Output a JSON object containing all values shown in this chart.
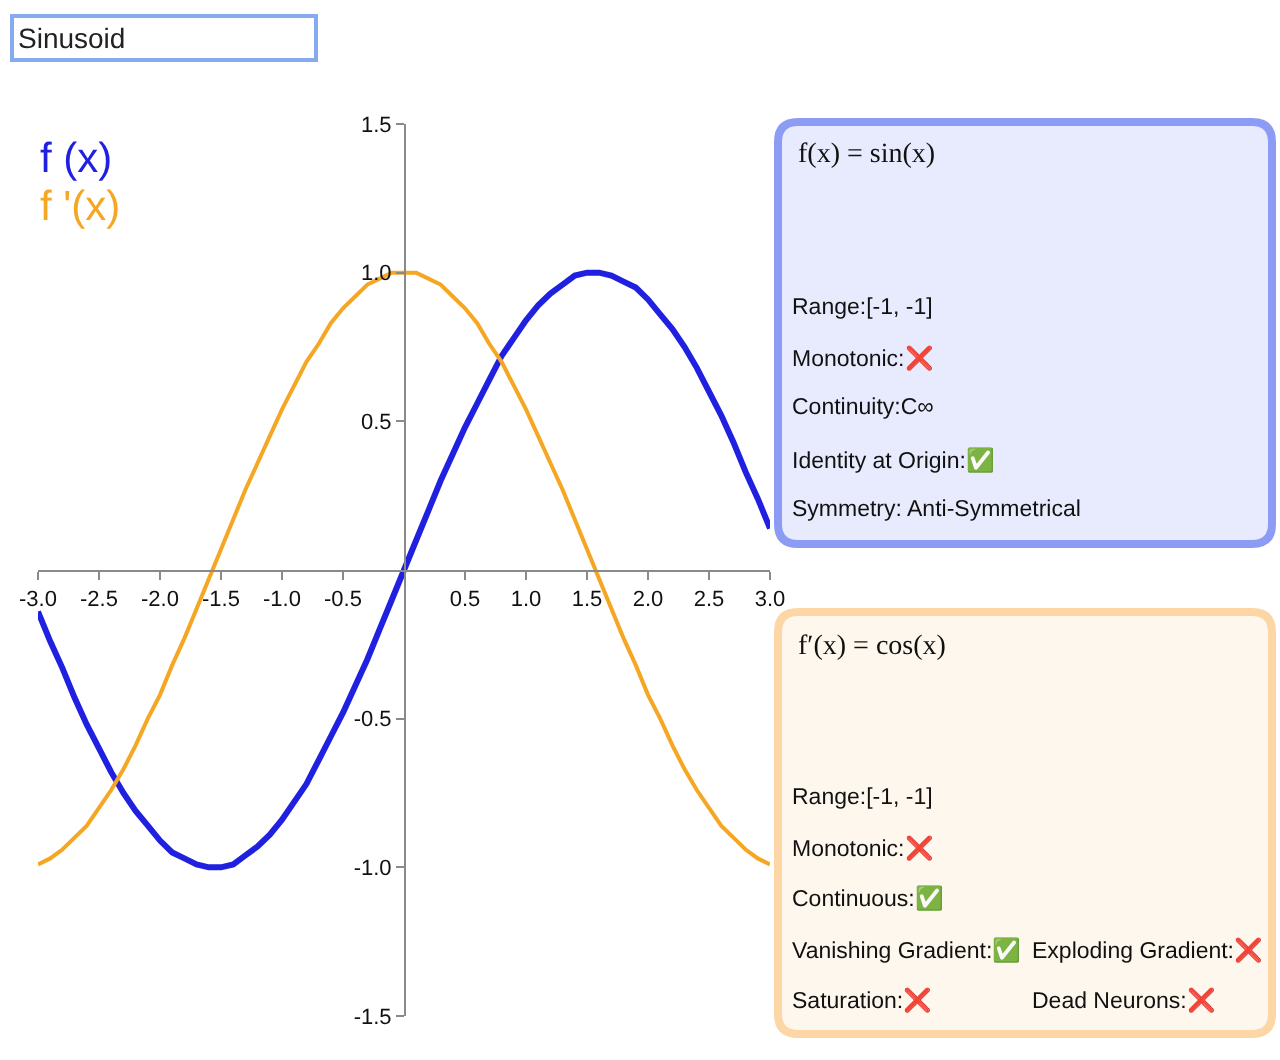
{
  "chart_data": [
    {
      "type": "line",
      "annotations": [
        "Sinusoid"
      ],
      "legend": "top left",
      "x": [
        -3.0,
        -2.9,
        -2.8,
        -2.7,
        -2.6,
        -2.5,
        -2.4,
        -2.3,
        -2.2,
        -2.1,
        -2.0,
        -1.9,
        -1.8,
        -1.7,
        -1.6,
        -1.5,
        -1.4,
        -1.3,
        -1.2,
        -1.1,
        -1.0,
        -0.9,
        -0.8,
        -0.7,
        -0.6,
        -0.5,
        -0.4,
        -0.3,
        -0.2,
        -0.1,
        0.0,
        0.1,
        0.2,
        0.3,
        0.4,
        0.5,
        0.6,
        0.7,
        0.8,
        0.9,
        1.0,
        1.1,
        1.2,
        1.3,
        1.4,
        1.5,
        1.6,
        1.7,
        1.8,
        1.9,
        2.0,
        2.1,
        2.2,
        2.3,
        2.4,
        2.5,
        2.6,
        2.7,
        2.8,
        2.9,
        3.0
      ],
      "series": [
        {
          "name": "f (x)",
          "color": "#2020e0",
          "values": [
            -0.14,
            -0.24,
            -0.33,
            -0.43,
            -0.52,
            -0.6,
            -0.68,
            -0.75,
            -0.81,
            -0.86,
            -0.91,
            -0.95,
            -0.97,
            -0.99,
            -1.0,
            -1.0,
            -0.99,
            -0.96,
            -0.93,
            -0.89,
            -0.84,
            -0.78,
            -0.72,
            -0.64,
            -0.56,
            -0.48,
            -0.39,
            -0.3,
            -0.2,
            -0.1,
            0.0,
            0.1,
            0.2,
            0.3,
            0.39,
            0.48,
            0.56,
            0.64,
            0.72,
            0.78,
            0.84,
            0.89,
            0.93,
            0.96,
            0.99,
            1.0,
            1.0,
            0.99,
            0.97,
            0.95,
            0.91,
            0.86,
            0.81,
            0.75,
            0.68,
            0.6,
            0.52,
            0.43,
            0.33,
            0.24,
            0.14
          ]
        },
        {
          "name": "f '(x)",
          "color": "#f5a623",
          "values": [
            -0.99,
            -0.97,
            -0.94,
            -0.9,
            -0.86,
            -0.8,
            -0.74,
            -0.67,
            -0.59,
            -0.5,
            -0.42,
            -0.32,
            -0.23,
            -0.13,
            -0.03,
            0.07,
            0.17,
            0.27,
            0.36,
            0.45,
            0.54,
            0.62,
            0.7,
            0.76,
            0.83,
            0.88,
            0.92,
            0.96,
            0.98,
            1.0,
            1.0,
            1.0,
            0.98,
            0.96,
            0.92,
            0.88,
            0.83,
            0.76,
            0.7,
            0.62,
            0.54,
            0.45,
            0.36,
            0.27,
            0.17,
            0.07,
            -0.03,
            -0.13,
            -0.23,
            -0.32,
            -0.42,
            -0.5,
            -0.59,
            -0.67,
            -0.74,
            -0.8,
            -0.86,
            -0.9,
            -0.94,
            -0.97,
            -0.99
          ]
        }
      ],
      "xlim": [
        -3,
        3
      ],
      "xticks": [
        {
          "value": -3,
          "label": "-3.0"
        },
        -2.5,
        {
          "value": -2,
          "label": "-2.0"
        },
        -1.5,
        {
          "value": -1,
          "label": "-1.0"
        },
        -0.5,
        0.5,
        {
          "value": 1,
          "label": "1.0"
        },
        1.5,
        {
          "value": 2,
          "label": "2.0"
        },
        2.5,
        {
          "value": 3,
          "label": "3.0"
        }
      ],
      "ylim": [
        -1.5,
        1.5
      ],
      "yticks": [
        {
          "value": -1.5,
          "label": "-1.5"
        },
        {
          "value": -1,
          "label": "-1.0"
        },
        -0.5,
        0.5,
        {
          "value": 1,
          "label": "1.0"
        },
        1.5
      ]
    },
    {
      "type": "other",
      "color": "#8c9cf4",
      "title": "f(x) = sin(x)",
      "annotations": [
        "Range:[-1, -1]",
        "Monotonic:❌",
        "Continuity:C∞",
        "Identity at Origin:✅",
        "Symmetry: Anti-Symmetrical"
      ]
    },
    {
      "type": "other",
      "color": "#fcd6a4",
      "title": "f′(x) = cos(x)",
      "annotations": [
        "Range:[-1, -1]",
        "Monotonic:❌",
        "Continuous:✅",
        "Vanishing Gradient:✅",
        "Exploding Gradient:❌",
        "Saturation:❌",
        "Dead Neurons:❌"
      ]
    }
  ]
}
